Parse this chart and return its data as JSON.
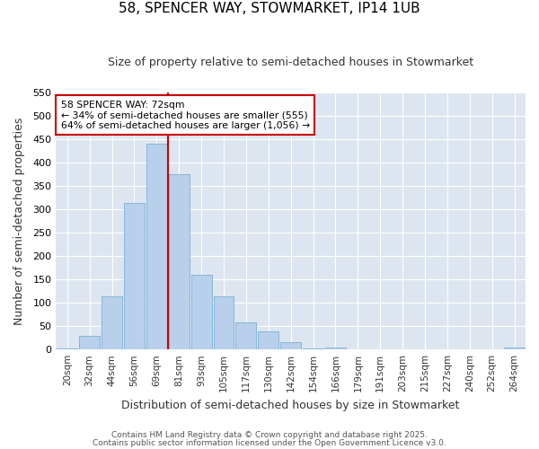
{
  "title1": "58, SPENCER WAY, STOWMARKET, IP14 1UB",
  "title2": "Size of property relative to semi-detached houses in Stowmarket",
  "xlabel": "Distribution of semi-detached houses by size in Stowmarket",
  "ylabel": "Number of semi-detached properties",
  "categories": [
    "20sqm",
    "32sqm",
    "44sqm",
    "56sqm",
    "69sqm",
    "81sqm",
    "93sqm",
    "105sqm",
    "117sqm",
    "130sqm",
    "142sqm",
    "154sqm",
    "166sqm",
    "179sqm",
    "191sqm",
    "203sqm",
    "215sqm",
    "227sqm",
    "240sqm",
    "252sqm",
    "264sqm"
  ],
  "values": [
    2,
    30,
    113,
    313,
    440,
    375,
    160,
    113,
    58,
    38,
    15,
    2,
    5,
    1,
    0,
    1,
    0,
    0,
    0,
    0,
    4
  ],
  "bar_color": "#b8d0eb",
  "bar_edge_color": "#7aafd4",
  "vline_color": "#cc0000",
  "annotation_title": "58 SPENCER WAY: 72sqm",
  "annotation_line1": "← 34% of semi-detached houses are smaller (555)",
  "annotation_line2": "64% of semi-detached houses are larger (1,056) →",
  "annotation_box_color": "#cc0000",
  "ylim": [
    0,
    550
  ],
  "yticks": [
    0,
    50,
    100,
    150,
    200,
    250,
    300,
    350,
    400,
    450,
    500,
    550
  ],
  "plot_bg_color": "#dde6f0",
  "fig_bg_color": "#ffffff",
  "grid_color": "#ffffff",
  "footer1": "Contains HM Land Registry data © Crown copyright and database right 2025.",
  "footer2": "Contains public sector information licensed under the Open Government Licence v3.0."
}
